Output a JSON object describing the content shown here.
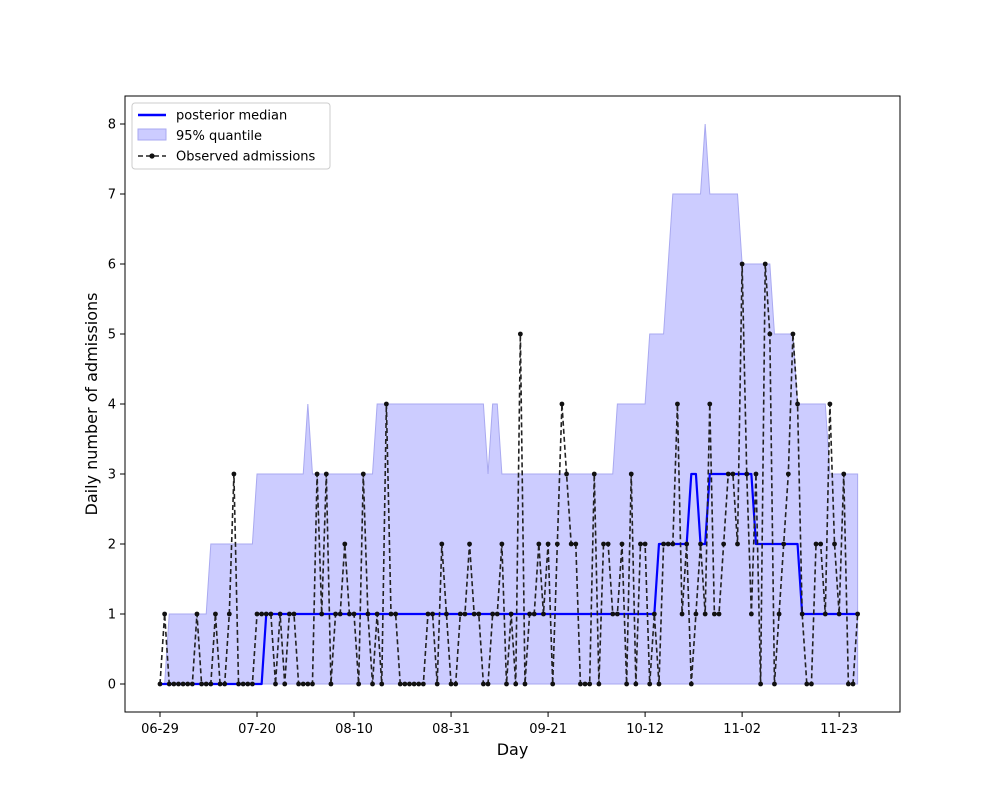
{
  "chart_data": {
    "type": "line",
    "xlabel": "Day",
    "ylabel": "Daily number of admissions",
    "x_start_date": "06-29",
    "x_tick_labels": [
      "06-29",
      "07-20",
      "08-10",
      "08-31",
      "09-21",
      "10-12",
      "11-02",
      "11-23"
    ],
    "ylim": [
      -0.4,
      8.4
    ],
    "y_ticks": [
      0,
      1,
      2,
      3,
      4,
      5,
      6,
      7,
      8
    ],
    "legend": {
      "position": "top-left",
      "entries": [
        "posterior median",
        "95% quantile",
        "Observed admissions"
      ]
    },
    "colors": {
      "median": "#0000ff",
      "band_fill": "#ccccff",
      "band_edge": "#a9a9f0",
      "observed": "#222222"
    },
    "series": [
      {
        "name": "Observed admissions",
        "values": [
          0,
          1,
          0,
          0,
          0,
          0,
          0,
          0,
          1,
          0,
          0,
          0,
          1,
          0,
          0,
          1,
          3,
          0,
          0,
          0,
          0,
          1,
          1,
          1,
          1,
          0,
          1,
          0,
          1,
          1,
          0,
          0,
          0,
          0,
          3,
          1,
          3,
          0,
          1,
          1,
          2,
          1,
          1,
          0,
          3,
          1,
          0,
          1,
          0,
          4,
          1,
          1,
          0,
          0,
          0,
          0,
          0,
          0,
          1,
          1,
          0,
          2,
          1,
          0,
          0,
          1,
          1,
          2,
          1,
          1,
          0,
          0,
          1,
          1,
          2,
          0,
          1,
          0,
          5,
          0,
          1,
          1,
          2,
          1,
          2,
          0,
          2,
          4,
          3,
          2,
          2,
          0,
          0,
          0,
          3,
          0,
          2,
          2,
          1,
          1,
          2,
          0,
          3,
          0,
          2,
          2,
          0,
          1,
          0,
          2,
          2,
          2,
          4,
          1,
          2,
          0,
          1,
          2,
          1,
          4,
          1,
          1,
          2,
          3,
          3,
          2,
          6,
          3,
          1,
          3,
          0,
          6,
          5,
          0,
          1,
          2,
          3,
          5,
          4,
          1,
          0,
          0,
          2,
          2,
          1,
          4,
          2,
          1,
          3,
          0,
          0,
          1
        ]
      },
      {
        "name": "posterior median",
        "segments": [
          {
            "from": 0,
            "to": 22,
            "value": 0
          },
          {
            "from": 23,
            "to": 107,
            "value": 1
          },
          {
            "from": 108,
            "to": 114,
            "value": 2
          },
          {
            "from": 115,
            "to": 116,
            "value": 3
          },
          {
            "from": 117,
            "to": 118,
            "value": 2
          },
          {
            "from": 119,
            "to": 128,
            "value": 3
          },
          {
            "from": 129,
            "to": 138,
            "value": 2
          },
          {
            "from": 139,
            "to": 153,
            "value": 1
          }
        ]
      },
      {
        "name": "95% quantile",
        "upper_segments": [
          {
            "from": 0,
            "to": 1,
            "value": 0
          },
          {
            "from": 2,
            "to": 10,
            "value": 1
          },
          {
            "from": 11,
            "to": 20,
            "value": 2
          },
          {
            "from": 21,
            "to": 31,
            "value": 3
          },
          {
            "from": 32,
            "to": 32,
            "value": 4
          },
          {
            "from": 33,
            "to": 46,
            "value": 3
          },
          {
            "from": 47,
            "to": 70,
            "value": 4
          },
          {
            "from": 71,
            "to": 71,
            "value": 3
          },
          {
            "from": 72,
            "to": 73,
            "value": 4
          },
          {
            "from": 74,
            "to": 98,
            "value": 3
          },
          {
            "from": 99,
            "to": 105,
            "value": 4
          },
          {
            "from": 106,
            "to": 109,
            "value": 5
          },
          {
            "from": 110,
            "to": 110,
            "value": 6
          },
          {
            "from": 111,
            "to": 117,
            "value": 7
          },
          {
            "from": 118,
            "to": 118,
            "value": 8
          },
          {
            "from": 119,
            "to": 125,
            "value": 7
          },
          {
            "from": 126,
            "to": 132,
            "value": 6
          },
          {
            "from": 133,
            "to": 137,
            "value": 5
          },
          {
            "from": 138,
            "to": 144,
            "value": 4
          },
          {
            "from": 145,
            "to": 153,
            "value": 3
          }
        ],
        "lower": 0
      }
    ]
  }
}
